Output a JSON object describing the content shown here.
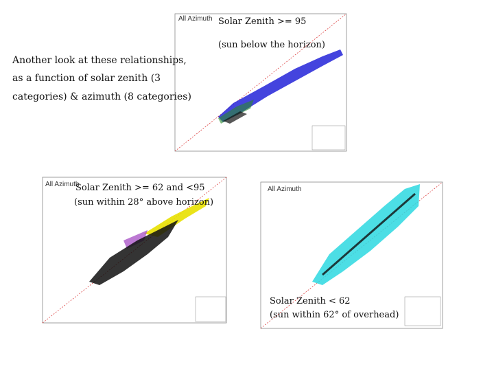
{
  "intro": {
    "lines": [
      "Another look at these relationships,",
      "as a function of solar zenith (3",
      "categories) & azimuth (8 categories)"
    ]
  },
  "panels": [
    {
      "label": "All Azimuth",
      "caption": [
        "Solar Zenith >= 95",
        "(sun below the horizon)"
      ]
    },
    {
      "label": "All Azimuth",
      "caption": [
        "Solar Zenith >= 62 and <95",
        "(sun within 28° above horizon)"
      ]
    },
    {
      "label": "All Azimuth",
      "caption": [
        "Solar Zenith < 62",
        "(sun within 62° of overhead)"
      ]
    }
  ]
}
